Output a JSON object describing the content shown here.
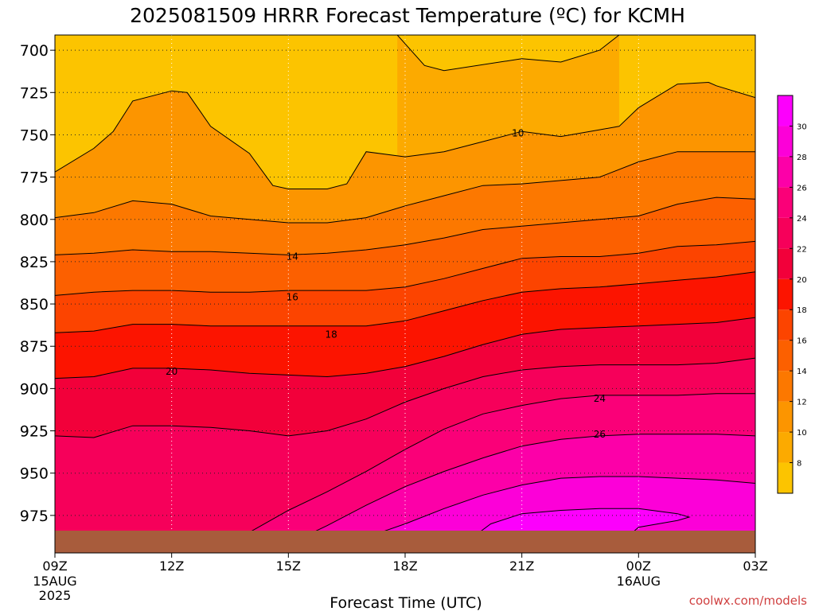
{
  "chart_data": {
    "type": "heatmap",
    "title": "2025081509 HRRR Forecast Temperature (ºC) for KCMH",
    "xlabel": "Forecast Time (UTC)",
    "ylabel": "",
    "credit": "coolwx.com/models",
    "x_ticks": [
      {
        "hour": 0,
        "label": "09Z",
        "sub1": "15AUG",
        "sub2": "2025"
      },
      {
        "hour": 3,
        "label": "12Z",
        "sub1": "",
        "sub2": ""
      },
      {
        "hour": 6,
        "label": "15Z",
        "sub1": "",
        "sub2": ""
      },
      {
        "hour": 9,
        "label": "18Z",
        "sub1": "",
        "sub2": ""
      },
      {
        "hour": 12,
        "label": "21Z",
        "sub1": "",
        "sub2": ""
      },
      {
        "hour": 15,
        "label": "00Z",
        "sub1": "16AUG",
        "sub2": ""
      },
      {
        "hour": 18,
        "label": "03Z",
        "sub1": "",
        "sub2": ""
      }
    ],
    "y_ticks": [
      "700",
      "725",
      "750",
      "775",
      "800",
      "825",
      "850",
      "875",
      "900",
      "925",
      "950",
      "975"
    ],
    "y_tick_values": [
      700,
      725,
      750,
      775,
      800,
      825,
      850,
      875,
      900,
      925,
      950,
      975
    ],
    "xlim": [
      0,
      18
    ],
    "ylim_hpa": [
      691,
      992
    ],
    "ground_hpa": 984,
    "colorbar": {
      "levels": [
        8,
        10,
        12,
        14,
        16,
        18,
        20,
        22,
        24,
        26,
        28,
        30
      ],
      "range": [
        6,
        32
      ],
      "colors": [
        "#fcc400",
        "#fcaa00",
        "#fc9500",
        "#fc7800",
        "#fc6000",
        "#fc4400",
        "#fc1400",
        "#f2003a",
        "#f6005a",
        "#fa0078",
        "#fc00a8",
        "#fc00d8",
        "#fc00fc"
      ]
    },
    "contour_labels": [
      {
        "text": "10",
        "hour": 11.9,
        "hpa": 749
      },
      {
        "text": "14",
        "hour": 6.1,
        "hpa": 822
      },
      {
        "text": "16",
        "hour": 6.1,
        "hpa": 846
      },
      {
        "text": "18",
        "hour": 7.1,
        "hpa": 868
      },
      {
        "text": "20",
        "hour": 3.0,
        "hpa": 890
      },
      {
        "text": "24",
        "hour": 14.0,
        "hpa": 906
      },
      {
        "text": "26",
        "hour": 14.0,
        "hpa": 927
      }
    ],
    "contours": [
      {
        "level": 6,
        "points": [
          [
            8.8,
            691
          ],
          [
            9.5,
            709
          ],
          [
            10,
            712
          ],
          [
            12,
            705
          ],
          [
            13,
            707
          ],
          [
            14,
            700
          ],
          [
            14.5,
            691
          ]
        ]
      },
      {
        "level": 8,
        "points": [
          [
            0,
            772
          ],
          [
            1,
            758
          ],
          [
            1.5,
            748
          ],
          [
            2,
            730
          ],
          [
            3,
            724
          ],
          [
            3.4,
            725
          ],
          [
            4,
            745
          ],
          [
            5,
            761
          ],
          [
            5.6,
            780
          ],
          [
            6,
            782
          ],
          [
            7,
            782
          ],
          [
            7.5,
            779
          ],
          [
            8,
            760
          ],
          [
            9,
            763
          ],
          [
            10,
            760
          ],
          [
            11,
            754
          ],
          [
            12,
            748
          ],
          [
            13,
            751
          ],
          [
            14,
            747
          ],
          [
            14.5,
            745
          ],
          [
            15,
            734
          ],
          [
            16,
            720
          ],
          [
            16.8,
            719
          ],
          [
            17,
            721
          ],
          [
            18,
            728
          ]
        ]
      },
      {
        "level": 10,
        "points": [
          [
            0,
            799
          ],
          [
            1,
            796
          ],
          [
            2,
            789
          ],
          [
            3,
            791
          ],
          [
            4,
            798
          ],
          [
            5,
            800
          ],
          [
            6,
            802
          ],
          [
            7,
            802
          ],
          [
            8,
            799
          ],
          [
            9,
            792
          ],
          [
            10,
            786
          ],
          [
            11,
            780
          ],
          [
            12,
            779
          ],
          [
            13,
            777
          ],
          [
            14,
            775
          ],
          [
            15,
            766
          ],
          [
            16,
            760
          ],
          [
            17,
            760
          ],
          [
            18,
            760
          ]
        ]
      },
      {
        "level": 12,
        "points": [
          [
            0,
            821
          ],
          [
            1,
            820
          ],
          [
            2,
            818
          ],
          [
            3,
            819
          ],
          [
            4,
            819
          ],
          [
            5,
            820
          ],
          [
            6,
            821
          ],
          [
            7,
            820
          ],
          [
            8,
            818
          ],
          [
            9,
            815
          ],
          [
            10,
            811
          ],
          [
            11,
            806
          ],
          [
            12,
            804
          ],
          [
            13,
            802
          ],
          [
            14,
            800
          ],
          [
            15,
            798
          ],
          [
            16,
            791
          ],
          [
            17,
            787
          ],
          [
            18,
            788
          ]
        ]
      },
      {
        "level": 14,
        "points": [
          [
            0,
            845
          ],
          [
            1,
            843
          ],
          [
            2,
            842
          ],
          [
            3,
            842
          ],
          [
            4,
            843
          ],
          [
            5,
            843
          ],
          [
            6,
            842
          ],
          [
            7,
            842
          ],
          [
            8,
            842
          ],
          [
            9,
            840
          ],
          [
            10,
            835
          ],
          [
            11,
            829
          ],
          [
            12,
            823
          ],
          [
            13,
            822
          ],
          [
            14,
            822
          ],
          [
            15,
            820
          ],
          [
            16,
            816
          ],
          [
            17,
            815
          ],
          [
            18,
            813
          ]
        ]
      },
      {
        "level": 16,
        "points": [
          [
            0,
            867
          ],
          [
            1,
            866
          ],
          [
            2,
            862
          ],
          [
            3,
            862
          ],
          [
            4,
            863
          ],
          [
            5,
            863
          ],
          [
            6,
            863
          ],
          [
            7,
            863
          ],
          [
            8,
            863
          ],
          [
            9,
            860
          ],
          [
            10,
            854
          ],
          [
            11,
            848
          ],
          [
            12,
            843
          ],
          [
            13,
            841
          ],
          [
            14,
            840
          ],
          [
            15,
            838
          ],
          [
            16,
            836
          ],
          [
            17,
            834
          ],
          [
            18,
            831
          ]
        ]
      },
      {
        "level": 18,
        "points": [
          [
            0,
            894
          ],
          [
            1,
            893
          ],
          [
            2,
            888
          ],
          [
            3,
            888
          ],
          [
            4,
            889
          ],
          [
            5,
            891
          ],
          [
            6,
            892
          ],
          [
            7,
            893
          ],
          [
            8,
            891
          ],
          [
            9,
            887
          ],
          [
            10,
            881
          ],
          [
            11,
            874
          ],
          [
            12,
            868
          ],
          [
            13,
            865
          ],
          [
            14,
            864
          ],
          [
            15,
            863
          ],
          [
            16,
            862
          ],
          [
            17,
            861
          ],
          [
            18,
            858
          ]
        ]
      },
      {
        "level": 20,
        "points": [
          [
            0,
            928
          ],
          [
            1,
            929
          ],
          [
            2,
            922
          ],
          [
            3,
            922
          ],
          [
            4,
            923
          ],
          [
            5,
            925
          ],
          [
            6,
            928
          ],
          [
            7,
            925
          ],
          [
            8,
            918
          ],
          [
            9,
            908
          ],
          [
            10,
            900
          ],
          [
            11,
            893
          ],
          [
            12,
            889
          ],
          [
            13,
            887
          ],
          [
            14,
            886
          ],
          [
            15,
            886
          ],
          [
            16,
            886
          ],
          [
            17,
            885
          ],
          [
            18,
            882
          ]
        ]
      },
      {
        "level": 22,
        "points": [
          [
            4.5,
            992
          ],
          [
            5,
            985
          ],
          [
            6,
            972
          ],
          [
            7,
            961
          ],
          [
            8,
            949
          ],
          [
            9,
            936
          ],
          [
            10,
            924
          ],
          [
            11,
            915
          ],
          [
            12,
            910
          ],
          [
            13,
            906
          ],
          [
            14,
            904
          ],
          [
            15,
            904
          ],
          [
            16,
            904
          ],
          [
            17,
            903
          ],
          [
            18,
            903
          ]
        ]
      },
      {
        "level": 24,
        "points": [
          [
            6,
            992
          ],
          [
            7,
            981
          ],
          [
            8,
            969
          ],
          [
            9,
            958
          ],
          [
            10,
            949
          ],
          [
            11,
            941
          ],
          [
            12,
            934
          ],
          [
            13,
            930
          ],
          [
            14,
            928
          ],
          [
            15,
            927
          ],
          [
            16,
            927
          ],
          [
            17,
            927
          ],
          [
            18,
            928
          ]
        ]
      },
      {
        "level": 26,
        "points": [
          [
            7.5,
            992
          ],
          [
            9,
            980
          ],
          [
            10,
            971
          ],
          [
            11,
            963
          ],
          [
            12,
            957
          ],
          [
            13,
            953
          ],
          [
            14,
            952
          ],
          [
            15,
            952
          ],
          [
            16,
            953
          ],
          [
            17,
            954
          ],
          [
            18,
            956
          ]
        ]
      },
      {
        "level": 28,
        "points": [
          [
            10.5,
            992
          ],
          [
            11.2,
            980
          ],
          [
            12,
            974
          ],
          [
            13,
            972
          ],
          [
            14,
            971
          ],
          [
            15,
            971
          ],
          [
            16,
            974
          ],
          [
            16.3,
            976
          ],
          [
            16,
            978
          ],
          [
            15,
            982
          ],
          [
            14.5,
            992
          ]
        ]
      }
    ]
  }
}
